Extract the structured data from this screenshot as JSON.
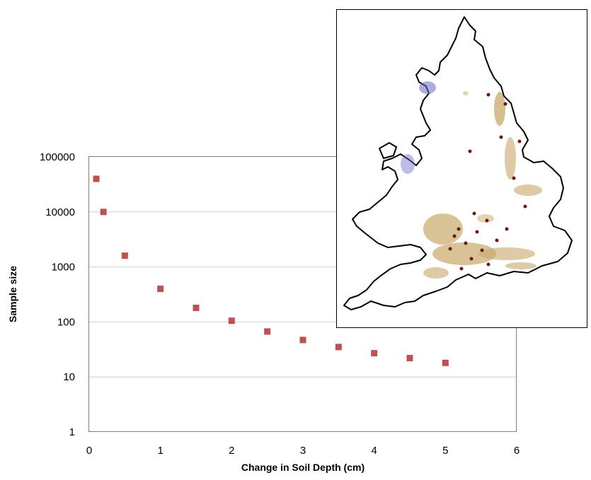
{
  "chart_data": {
    "type": "scatter",
    "title": "",
    "xlabel": "Change in Soil Depth (cm)",
    "ylabel": "Sample size",
    "xlim": [
      0,
      6
    ],
    "ylim": [
      1,
      100000
    ],
    "y_scale": "log",
    "x_ticks": [
      "0",
      "1",
      "2",
      "3",
      "4",
      "5",
      "6"
    ],
    "y_ticks": [
      "1",
      "10",
      "100",
      "1000",
      "10000",
      "100000"
    ],
    "grid": "horizontal",
    "marker_color": "#c0504d",
    "points": [
      {
        "x": 0.1,
        "y": 40000
      },
      {
        "x": 0.2,
        "y": 10000
      },
      {
        "x": 0.5,
        "y": 1600
      },
      {
        "x": 1.0,
        "y": 400
      },
      {
        "x": 1.5,
        "y": 180
      },
      {
        "x": 2.0,
        "y": 105
      },
      {
        "x": 2.5,
        "y": 67
      },
      {
        "x": 3.0,
        "y": 47
      },
      {
        "x": 3.5,
        "y": 35
      },
      {
        "x": 4.0,
        "y": 27
      },
      {
        "x": 4.5,
        "y": 22
      },
      {
        "x": 5.0,
        "y": 18
      }
    ]
  },
  "inset_map": {
    "outline_color": "#000000",
    "sand_color": "#c8a86a",
    "dark_color": "#6b1a10",
    "blue_color": "#6a6ac8"
  }
}
